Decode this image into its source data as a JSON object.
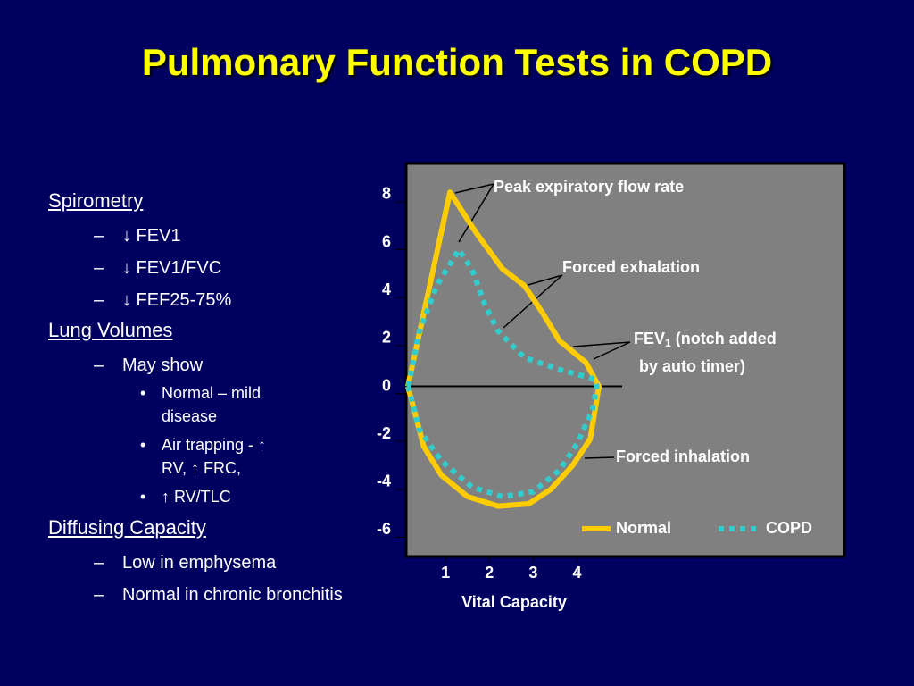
{
  "title": "Pulmonary Function Tests in COPD",
  "outline": [
    {
      "heading": "Spirometry",
      "items": [
        {
          "text": "↓ FEV1"
        },
        {
          "text": "↓ FEV1/FVC"
        },
        {
          "text": "↓ FEF25-75%"
        }
      ]
    },
    {
      "heading": "Lung Volumes",
      "items": [
        {
          "text": "May show",
          "sub": [
            "Normal – mild disease",
            "Air trapping - ↑ RV, ↑ FRC,",
            "↑ RV/TLC"
          ]
        }
      ]
    },
    {
      "heading": "Diffusing Capacity",
      "items": [
        {
          "text": "Low in emphysema"
        },
        {
          "text": "Normal in chronic bronchitis"
        }
      ]
    }
  ],
  "chart_data": {
    "type": "line",
    "x_label": "Vital Capacity",
    "xlim": [
      0.1,
      10.1
    ],
    "xticks": [
      1,
      2,
      3,
      4
    ],
    "ylim": [
      -7.1,
      9.3
    ],
    "yticks": [
      8,
      6,
      4,
      2,
      0,
      -2,
      -4,
      -6
    ],
    "legend": "bottom-right",
    "annotations": {
      "peak": "Peak expiratory flow rate",
      "exhalation": "Forced exhalation",
      "fev_main": "FEV",
      "fev_sub": "1",
      "fev_rest": " (notch added",
      "fev_line2": "by auto timer)",
      "inhalation": "Forced inhalation"
    },
    "series": [
      {
        "name": "Normal",
        "color": "#ffcc00",
        "style": "solid",
        "x": [
          0.14,
          1.1,
          1.7,
          2.3,
          2.8,
          3.2,
          3.6,
          4.2,
          4.5,
          4.3,
          3.9,
          3.4,
          2.9,
          2.2,
          1.5,
          0.9,
          0.5,
          0.14
        ],
        "y": [
          0,
          8.1,
          6.4,
          4.9,
          4.2,
          3.1,
          1.9,
          1.0,
          0,
          -2.2,
          -3.3,
          -4.3,
          -4.9,
          -5.0,
          -4.6,
          -3.7,
          -2.5,
          0
        ]
      },
      {
        "name": "COPD",
        "color": "#33cccc",
        "style": "dotted",
        "x": [
          0.15,
          0.4,
          0.8,
          1.3,
          1.6,
          1.9,
          2.2,
          2.8,
          3.6,
          4.4,
          4.45,
          4.35,
          4.0,
          3.6,
          3.0,
          2.3,
          1.6,
          0.9,
          0.4,
          0.15
        ],
        "y": [
          0,
          2.3,
          4.2,
          5.7,
          4.9,
          3.4,
          2.3,
          1.2,
          0.7,
          0.3,
          0,
          -1.0,
          -2.4,
          -3.5,
          -4.4,
          -4.6,
          -4.2,
          -3.1,
          -1.8,
          0
        ]
      }
    ]
  }
}
